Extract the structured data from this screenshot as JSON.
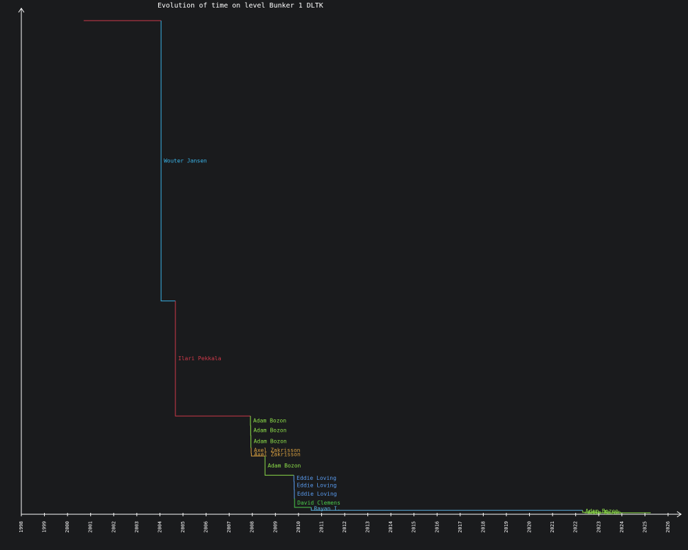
{
  "chart_data": {
    "type": "step",
    "title": "Evolution of time on level Bunker 1 DLTK",
    "x": [
      2000.7,
      2004.05,
      2004.67,
      2007.92,
      2007.93,
      2007.94,
      2007.95,
      2007.96,
      2008.55,
      2009.8,
      2009.81,
      2009.82,
      2009.83,
      2010.55,
      2022.3,
      2022.4
    ],
    "values": [
      100,
      43.2,
      19.9,
      18.0,
      16.0,
      13.5,
      12.4,
      11.8,
      7.9,
      6.7,
      5.0,
      3.2,
      1.4,
      0.8,
      0.4,
      0.3
    ],
    "names": [
      null,
      "Wouter Jansen",
      "Ilari Pekkala",
      "Adam Bozon",
      "Adam Bozon",
      "Adam Bozon",
      "Axel Zakrisson",
      "Axel Zakrisson",
      "Adam Bozon",
      "Eddie Loving",
      "Eddie Loving",
      "Eddie Loving",
      "David Clemens",
      "Rayan I.",
      "Adam Bozon",
      "Adam Bozon"
    ],
    "colors": [
      "#d03a4a",
      "#3ab4e8",
      "#d03a4a",
      "#8ee04a",
      "#8ee04a",
      "#8ee04a",
      "#d8a040",
      "#d8a040",
      "#8ee04a",
      "#5a9cf0",
      "#5a9cf0",
      "#5a9cf0",
      "#4ccc4c",
      "#5ab0e0",
      "#8ee04a",
      "#8ee04a"
    ],
    "x_end": 2025.25,
    "xlim": [
      1998,
      2026
    ],
    "xticks": [
      1998,
      1999,
      2000,
      2001,
      2002,
      2003,
      2004,
      2005,
      2006,
      2007,
      2008,
      2009,
      2010,
      2011,
      2012,
      2013,
      2014,
      2015,
      2016,
      2017,
      2018,
      2019,
      2020,
      2021,
      2022,
      2023,
      2024,
      2025,
      2026
    ],
    "ylim": [
      0,
      102.5
    ]
  }
}
